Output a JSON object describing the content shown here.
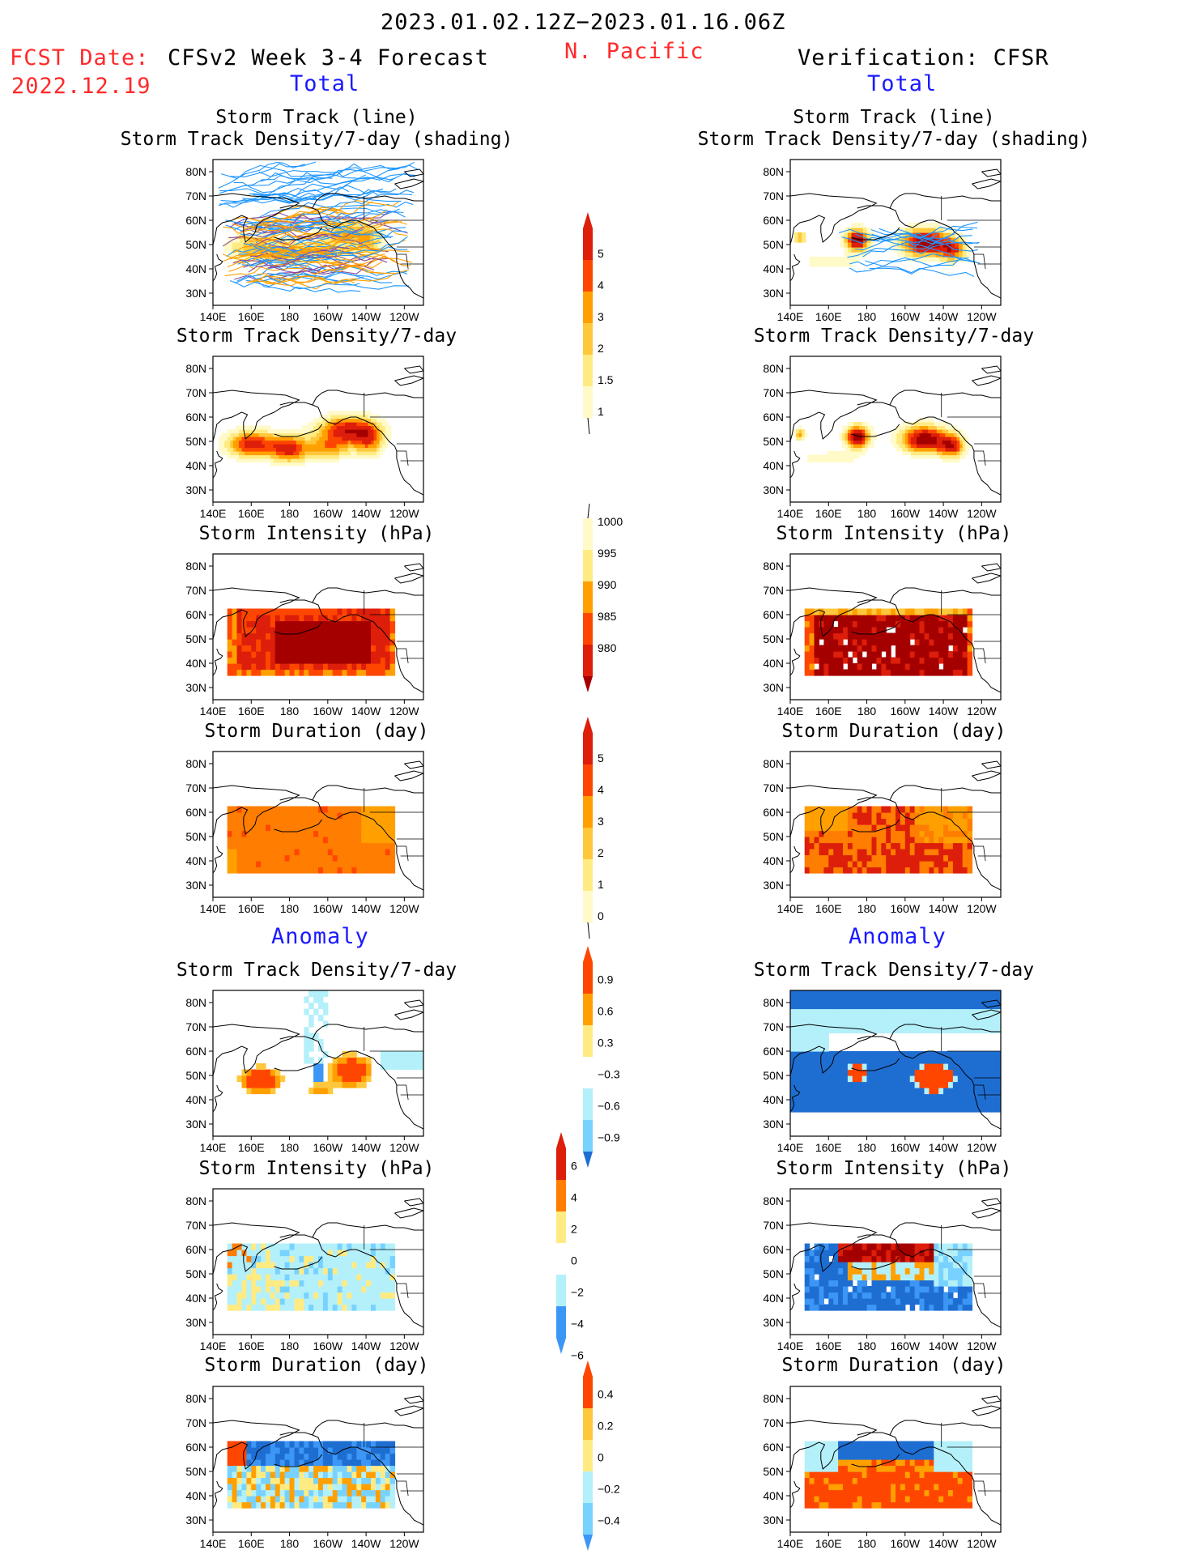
{
  "header": {
    "period": "2023.01.02.12Z−2023.01.16.06Z",
    "region": "N. Pacific",
    "fcst_label": "FCST Date:",
    "fcst_date": "2022.12.19",
    "left_title": "CFSv2 Week 3-4 Forecast",
    "right_title": "Verification: CFSR",
    "total_label": "Total",
    "anomaly_label": "Anomaly"
  },
  "axes": {
    "lat_ticks": [
      "80N",
      "70N",
      "60N",
      "50N",
      "40N",
      "30N"
    ],
    "lon_ticks": [
      "140E",
      "160E",
      "180",
      "160W",
      "140W",
      "120W"
    ]
  },
  "panel_titles": {
    "track_line": "Storm Track (line)",
    "track_shading": "Storm Track Density/7-day (shading)",
    "density": "Storm Track Density/7-day",
    "intensity": "Storm Intensity (hPa)",
    "duration": "Storm Duration (day)"
  },
  "colorbars": {
    "density_total": [
      "5",
      "4",
      "3",
      "2",
      "1.5",
      "1"
    ],
    "intensity_total": [
      "1000",
      "995",
      "990",
      "985",
      "980"
    ],
    "duration_total": [
      "5",
      "4",
      "3",
      "2",
      "1",
      "0"
    ],
    "density_anom": [
      "0.9",
      "0.6",
      "0.3",
      "−0.3",
      "−0.6",
      "−0.9"
    ],
    "intensity_anom": [
      "6",
      "4",
      "2",
      "0",
      "−2",
      "−4",
      "−6"
    ],
    "duration_anom": [
      "0.4",
      "0.2",
      "0",
      "−0.2",
      "−0.4"
    ]
  },
  "colors": {
    "dark_red": "#a50000",
    "red": "#dc1e0a",
    "orange_red": "#ff4600",
    "orange": "#ff7d00",
    "amber": "#ffa000",
    "yellow": "#ffc83c",
    "pale_yellow": "#ffeb82",
    "cream": "#fffac8",
    "light_blue": "#b4f0fa",
    "sky_blue": "#78d2ff",
    "mid_blue": "#3c96f5",
    "deep_blue": "#1e6ed2",
    "track_blue": "#1e96ff"
  }
}
